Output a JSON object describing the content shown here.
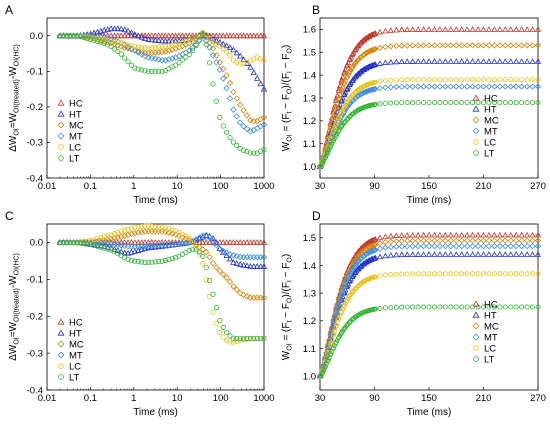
{
  "colors": {
    "HC": "#c0392b",
    "HT": "#2233cc",
    "MC": "#d4860b",
    "MT": "#3f8fe0",
    "LC": "#e8c21a",
    "LT": "#33b533"
  },
  "chart_data": [
    {
      "panel": "A",
      "type": "scatter",
      "xscale": "log",
      "xlim": [
        0.01,
        1000
      ],
      "ylim": [
        -0.4,
        0.05
      ],
      "xticks": [
        0.01,
        0.1,
        1,
        10,
        100,
        1000
      ],
      "xtick_labels": [
        "0.01",
        "0.1",
        "1",
        "10",
        "100",
        "1000"
      ],
      "yticks": [
        0.0,
        -0.1,
        -0.2,
        -0.3,
        -0.4
      ],
      "ytick_labels": [
        "0.0",
        "-0.1",
        "-0.2",
        "-0.3",
        "-0.4"
      ],
      "xlabel": "Time (ms)",
      "ylabel": "ΔW_OI=W_OI(treated)-W_OI(HC)",
      "ylabel_parts": {
        "pre": "ΔW",
        "s1": "OI",
        "mid": "=W",
        "s2": "OI(treated)",
        "mid2": "-W",
        "s3": "OI(HC)"
      },
      "legend": "left",
      "series": [
        {
          "name": "HC",
          "x": [
            0.02,
            0.05,
            0.1,
            0.2,
            0.5,
            1,
            2,
            5,
            10,
            20,
            50,
            100,
            200,
            500,
            1000
          ],
          "y": [
            0,
            0,
            0,
            0,
            0,
            0,
            0,
            0,
            0,
            0,
            0,
            0,
            0,
            0,
            0
          ]
        },
        {
          "name": "HT",
          "x": [
            0.02,
            0.05,
            0.1,
            0.2,
            0.3,
            0.5,
            0.7,
            1,
            2,
            5,
            10,
            20,
            30,
            40,
            50,
            70,
            100,
            150,
            200,
            300,
            500,
            700,
            1000
          ],
          "y": [
            0,
            0,
            0.005,
            0.015,
            0.02,
            0.02,
            0.015,
            0.005,
            -0.01,
            -0.015,
            -0.015,
            -0.01,
            0.0,
            0.005,
            0.0,
            -0.01,
            -0.02,
            -0.03,
            -0.04,
            -0.06,
            -0.09,
            -0.12,
            -0.15
          ]
        },
        {
          "name": "MC",
          "x": [
            0.02,
            0.05,
            0.1,
            0.2,
            0.3,
            0.5,
            0.7,
            1,
            2,
            5,
            10,
            20,
            30,
            40,
            50,
            70,
            100,
            150,
            200,
            300,
            500,
            700,
            1000
          ],
          "y": [
            0,
            0,
            -0.005,
            -0.015,
            -0.02,
            -0.03,
            -0.035,
            -0.04,
            -0.05,
            -0.045,
            -0.035,
            -0.02,
            -0.005,
            0.005,
            -0.01,
            -0.04,
            -0.08,
            -0.12,
            -0.16,
            -0.2,
            -0.24,
            -0.24,
            -0.23
          ]
        },
        {
          "name": "MT",
          "x": [
            0.02,
            0.05,
            0.1,
            0.2,
            0.3,
            0.5,
            0.7,
            1,
            2,
            5,
            10,
            20,
            30,
            40,
            50,
            70,
            100,
            150,
            200,
            300,
            500,
            700,
            1000
          ],
          "y": [
            0,
            0,
            0.0,
            -0.005,
            -0.01,
            -0.02,
            -0.03,
            -0.04,
            -0.06,
            -0.07,
            -0.06,
            -0.04,
            -0.02,
            0.0,
            -0.02,
            -0.06,
            -0.1,
            -0.16,
            -0.21,
            -0.25,
            -0.27,
            -0.26,
            -0.25
          ]
        },
        {
          "name": "LC",
          "x": [
            0.02,
            0.05,
            0.1,
            0.2,
            0.3,
            0.5,
            0.7,
            1,
            2,
            5,
            10,
            20,
            30,
            40,
            50,
            70,
            100,
            150,
            200,
            300,
            500,
            700,
            1000
          ],
          "y": [
            0,
            0,
            -0.005,
            -0.01,
            -0.015,
            -0.02,
            -0.025,
            -0.03,
            -0.035,
            -0.03,
            -0.025,
            -0.01,
            0.0,
            0.01,
            0.0,
            -0.02,
            -0.03,
            -0.05,
            -0.07,
            -0.08,
            -0.07,
            -0.06,
            -0.07
          ]
        },
        {
          "name": "LT",
          "x": [
            0.02,
            0.05,
            0.1,
            0.2,
            0.3,
            0.5,
            0.7,
            1,
            2,
            5,
            10,
            20,
            30,
            40,
            50,
            70,
            100,
            150,
            200,
            300,
            500,
            700,
            1000
          ],
          "y": [
            0,
            0,
            -0.01,
            -0.02,
            -0.03,
            -0.05,
            -0.07,
            -0.09,
            -0.1,
            -0.1,
            -0.08,
            -0.05,
            -0.02,
            0.01,
            -0.04,
            -0.15,
            -0.24,
            -0.28,
            -0.3,
            -0.32,
            -0.33,
            -0.33,
            -0.32
          ]
        }
      ]
    },
    {
      "panel": "B",
      "type": "scatter",
      "xlim": [
        30,
        270
      ],
      "ylim": [
        0.95,
        1.65
      ],
      "xticks": [
        30,
        90,
        150,
        210,
        270
      ],
      "xtick_labels": [
        "30",
        "90",
        "150",
        "210",
        "270"
      ],
      "yticks": [
        1.0,
        1.1,
        1.2,
        1.3,
        1.4,
        1.5,
        1.6
      ],
      "ytick_labels": [
        "1.0",
        "1.1",
        "1.2",
        "1.3",
        "1.4",
        "1.5",
        "1.6"
      ],
      "xlabel": "Time (ms)",
      "ylabel": "W_OI = (F_t − F_O)/(F_I − F_O)",
      "ylabel_parts": {
        "pre": "W",
        "s1": "OI",
        "mid": " = (F",
        "s2": "t",
        "mid2": " − F",
        "s3": "O",
        "mid3": ")/(F",
        "s4": "I",
        "mid4": " − F",
        "s5": "O",
        "end": ")"
      },
      "legend": "right",
      "series": [
        {
          "name": "HC",
          "plateau": 1.6
        },
        {
          "name": "HT",
          "plateau": 1.46
        },
        {
          "name": "MC",
          "plateau": 1.53
        },
        {
          "name": "MT",
          "plateau": 1.35
        },
        {
          "name": "LC",
          "plateau": 1.38
        },
        {
          "name": "LT",
          "plateau": 1.28
        }
      ]
    },
    {
      "panel": "C",
      "type": "scatter",
      "xscale": "log",
      "xlim": [
        0.01,
        1000
      ],
      "ylim": [
        -0.4,
        0.05
      ],
      "xticks": [
        0.01,
        0.1,
        1,
        10,
        100,
        1000
      ],
      "xtick_labels": [
        "0.01",
        "0.1",
        "1",
        "10",
        "100",
        "1000"
      ],
      "yticks": [
        0.0,
        -0.1,
        -0.2,
        -0.3,
        -0.4
      ],
      "ytick_labels": [
        "0.0",
        "-0.1",
        "-0.2",
        "-0.3",
        "-0.4"
      ],
      "xlabel": "Time (ms)",
      "ylabel": "ΔW_OI=W_OI(treated)-W_OI(HC)",
      "ylabel_parts": {
        "pre": "ΔW",
        "s1": "OI",
        "mid": "=W",
        "s2": "OI(treated)",
        "mid2": "-W",
        "s3": "OI(HC)"
      },
      "legend": "left",
      "series": [
        {
          "name": "HC",
          "x": [
            0.02,
            0.05,
            0.1,
            0.2,
            0.5,
            1,
            2,
            5,
            10,
            20,
            50,
            100,
            200,
            500,
            1000
          ],
          "y": [
            0,
            0,
            0,
            0,
            0,
            0,
            0,
            0,
            0,
            0,
            0,
            0,
            0,
            0,
            0
          ]
        },
        {
          "name": "HT",
          "x": [
            0.02,
            0.05,
            0.1,
            0.2,
            0.3,
            0.5,
            0.7,
            1,
            2,
            5,
            10,
            20,
            30,
            40,
            50,
            70,
            100,
            150,
            200,
            300,
            500,
            700,
            1000
          ],
          "y": [
            0,
            0,
            -0.005,
            -0.01,
            -0.015,
            -0.025,
            -0.03,
            -0.025,
            -0.015,
            -0.01,
            -0.005,
            0.0,
            0.01,
            0.015,
            0.02,
            0.01,
            -0.02,
            -0.04,
            -0.055,
            -0.06,
            -0.065,
            -0.065,
            -0.065
          ]
        },
        {
          "name": "MC",
          "x": [
            0.02,
            0.05,
            0.1,
            0.2,
            0.3,
            0.5,
            0.7,
            1,
            2,
            5,
            10,
            20,
            30,
            40,
            50,
            70,
            100,
            150,
            200,
            300,
            500,
            700,
            1000
          ],
          "y": [
            0,
            0,
            0.0,
            0.005,
            0.01,
            0.015,
            0.02,
            0.025,
            0.03,
            0.03,
            0.02,
            0.005,
            -0.01,
            -0.02,
            -0.03,
            -0.06,
            -0.08,
            -0.1,
            -0.12,
            -0.14,
            -0.15,
            -0.15,
            -0.15
          ]
        },
        {
          "name": "MT",
          "x": [
            0.02,
            0.05,
            0.1,
            0.2,
            0.3,
            0.5,
            0.7,
            1,
            2,
            5,
            10,
            20,
            30,
            40,
            50,
            70,
            100,
            150,
            200,
            300,
            500,
            700,
            1000
          ],
          "y": [
            0,
            0,
            0.0,
            -0.002,
            -0.005,
            -0.008,
            -0.01,
            -0.012,
            -0.01,
            -0.008,
            -0.005,
            0.0,
            0.01,
            0.02,
            0.02,
            0.0,
            -0.02,
            -0.03,
            -0.035,
            -0.04,
            -0.04,
            -0.04,
            -0.04
          ]
        },
        {
          "name": "LC",
          "x": [
            0.02,
            0.05,
            0.1,
            0.2,
            0.3,
            0.5,
            0.7,
            1,
            2,
            5,
            10,
            20,
            30,
            40,
            50,
            70,
            100,
            150,
            200,
            300,
            500,
            700,
            1000
          ],
          "y": [
            0,
            0,
            0.005,
            0.015,
            0.02,
            0.03,
            0.035,
            0.04,
            0.045,
            0.04,
            0.03,
            0.01,
            -0.02,
            -0.06,
            -0.12,
            -0.2,
            -0.25,
            -0.27,
            -0.27,
            -0.265,
            -0.26,
            -0.26,
            -0.26
          ]
        },
        {
          "name": "LT",
          "x": [
            0.02,
            0.05,
            0.1,
            0.2,
            0.3,
            0.5,
            0.7,
            1,
            2,
            5,
            10,
            20,
            30,
            40,
            50,
            70,
            100,
            150,
            200,
            300,
            500,
            700,
            1000
          ],
          "y": [
            0,
            0,
            -0.005,
            -0.015,
            -0.02,
            -0.035,
            -0.045,
            -0.05,
            -0.055,
            -0.05,
            -0.04,
            -0.02,
            -0.02,
            -0.04,
            -0.08,
            -0.15,
            -0.22,
            -0.25,
            -0.26,
            -0.26,
            -0.26,
            -0.26,
            -0.26
          ]
        }
      ]
    },
    {
      "panel": "D",
      "type": "scatter",
      "xlim": [
        30,
        270
      ],
      "ylim": [
        0.95,
        1.55
      ],
      "xticks": [
        30,
        90,
        150,
        210,
        270
      ],
      "xtick_labels": [
        "30",
        "90",
        "150",
        "210",
        "270"
      ],
      "yticks": [
        1.0,
        1.1,
        1.2,
        1.3,
        1.4,
        1.5
      ],
      "ytick_labels": [
        "1.0",
        "1.1",
        "1.2",
        "1.3",
        "1.4",
        "1.5"
      ],
      "xlabel": "Time (ms)",
      "ylabel": "W_OI = (F_t − F_O)/(F_I − F_O)",
      "ylabel_parts": {
        "pre": "W",
        "s1": "OI",
        "mid": " = (F",
        "s2": "t",
        "mid2": " − F",
        "s3": "O",
        "mid3": ")/(F",
        "s4": "I",
        "mid4": " − F",
        "s5": "O",
        "end": ")"
      },
      "legend": "right",
      "series": [
        {
          "name": "HC",
          "plateau": 1.51
        },
        {
          "name": "HT",
          "plateau": 1.44
        },
        {
          "name": "MC",
          "plateau": 1.49
        },
        {
          "name": "MT",
          "plateau": 1.47
        },
        {
          "name": "LC",
          "plateau": 1.37
        },
        {
          "name": "LT",
          "plateau": 1.25
        }
      ]
    }
  ]
}
